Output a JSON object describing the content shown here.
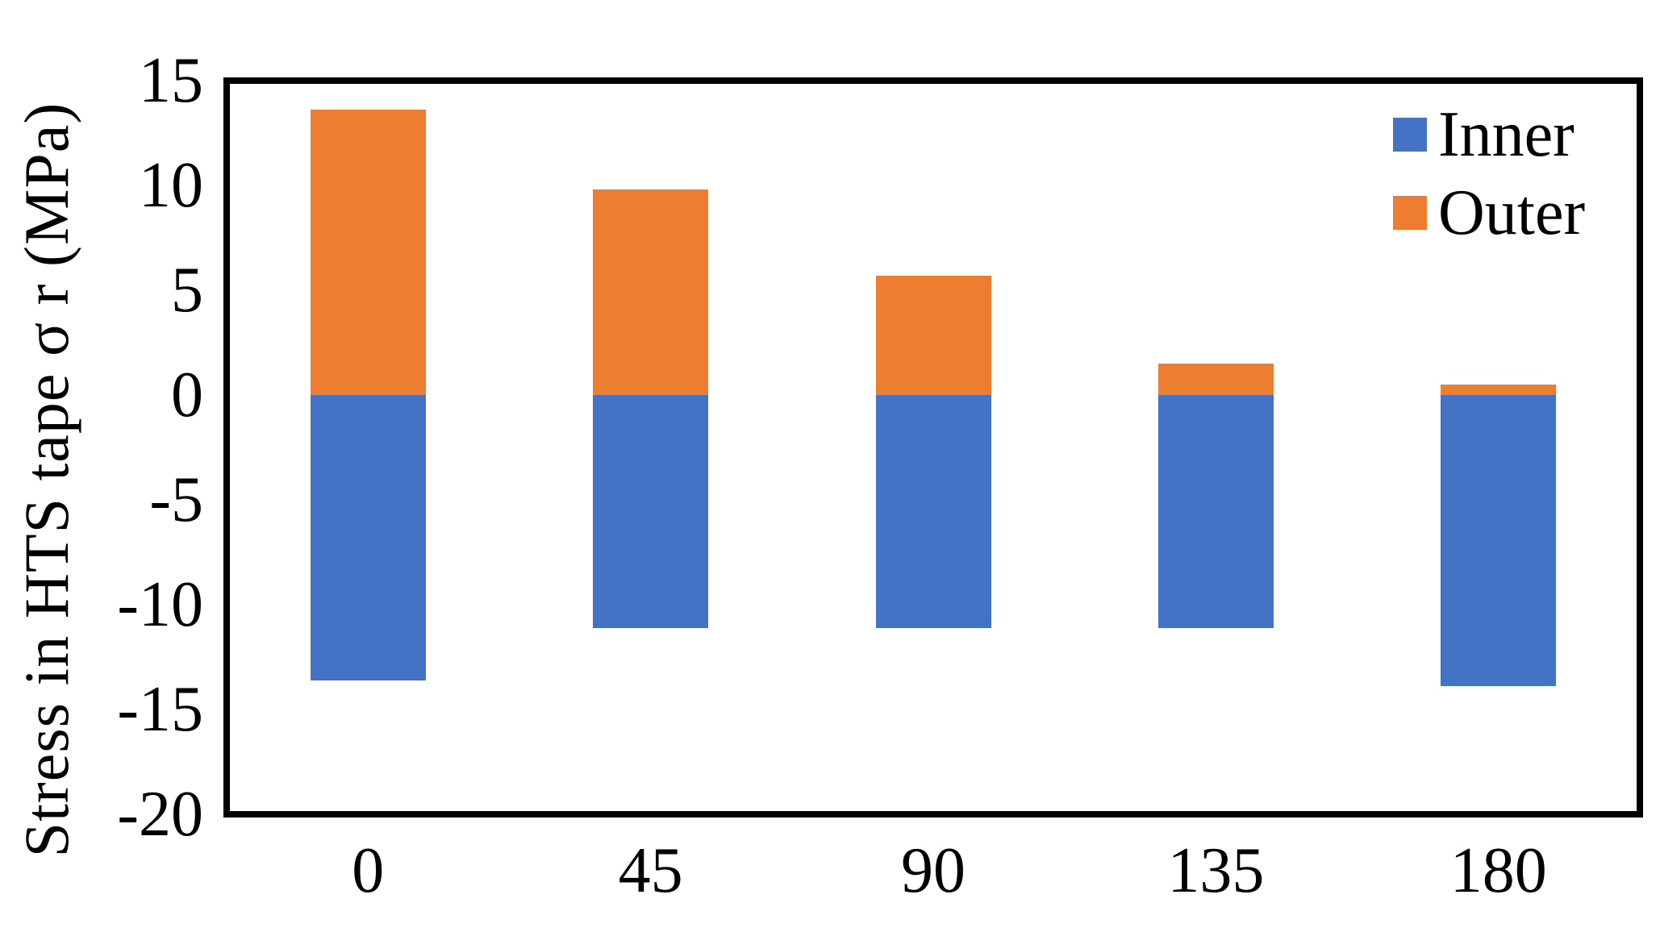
{
  "figure": {
    "background": "#ffffff",
    "border_color": "#000000",
    "text_color": "#000000"
  },
  "chart_data": {
    "type": "bar",
    "stacked": true,
    "orientation": "vertical",
    "title": "",
    "xlabel": "",
    "ylabel": "Stress in HTS tape σ r (MPa)",
    "categories": [
      "0",
      "45",
      "90",
      "135",
      "180"
    ],
    "series": [
      {
        "name": "Inner",
        "color": "#4472C4",
        "values": [
          -13.6,
          -11.1,
          -11.1,
          -11.1,
          -13.9
        ]
      },
      {
        "name": "Outer",
        "color": "#ED7D31",
        "values": [
          13.6,
          9.8,
          5.7,
          1.5,
          0.5
        ]
      }
    ],
    "ylim": [
      -20,
      15
    ],
    "yticks": [
      15,
      10,
      5,
      0,
      -5,
      -10,
      -15,
      -20
    ],
    "grid": false,
    "legend": {
      "position": "top-right-inside",
      "entries": [
        "Inner",
        "Outer"
      ]
    }
  }
}
